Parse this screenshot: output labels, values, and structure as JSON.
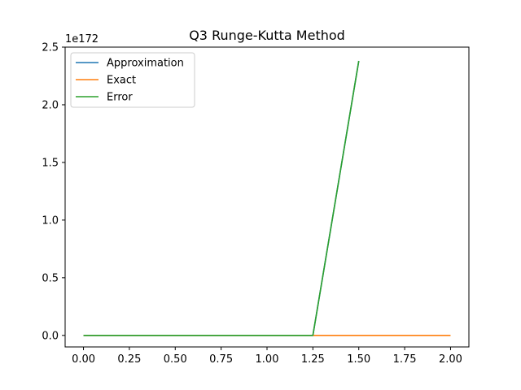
{
  "chart_data": {
    "type": "line",
    "title": "Q3 Runge-Kutta Method",
    "xlabel": "",
    "ylabel": "",
    "y_offset_label": "1e172",
    "xlim": [
      -0.1,
      2.1
    ],
    "ylim": [
      -0.1,
      2.5
    ],
    "x_ticks": [
      0.0,
      0.25,
      0.5,
      0.75,
      1.0,
      1.25,
      1.5,
      1.75,
      2.0
    ],
    "x_tick_labels": [
      "0.00",
      "0.25",
      "0.50",
      "0.75",
      "1.00",
      "1.25",
      "1.50",
      "1.75",
      "2.00"
    ],
    "y_ticks": [
      0.0,
      0.5,
      1.0,
      1.5,
      2.0,
      2.5
    ],
    "y_tick_labels": [
      "0.0",
      "0.5",
      "1.0",
      "1.5",
      "2.0",
      "2.5"
    ],
    "grid": false,
    "legend": "top-left",
    "series": [
      {
        "name": "Approximation",
        "color": "#1f77b4",
        "x": [
          0.0,
          0.25,
          0.5,
          0.75,
          1.0,
          1.25,
          1.5
        ],
        "y": [
          0,
          0,
          0,
          0,
          0,
          0,
          2.38
        ]
      },
      {
        "name": "Exact",
        "color": "#ff7f0e",
        "x": [
          0.0,
          0.25,
          0.5,
          0.75,
          1.0,
          1.25,
          1.5,
          1.75,
          2.0
        ],
        "y": [
          0,
          0,
          0,
          0,
          0,
          0,
          0,
          0,
          0
        ]
      },
      {
        "name": "Error",
        "color": "#2ca02c",
        "x": [
          0.0,
          0.25,
          0.5,
          0.75,
          1.0,
          1.25,
          1.5
        ],
        "y": [
          0,
          0,
          0,
          0,
          0,
          0,
          2.38
        ]
      }
    ]
  }
}
